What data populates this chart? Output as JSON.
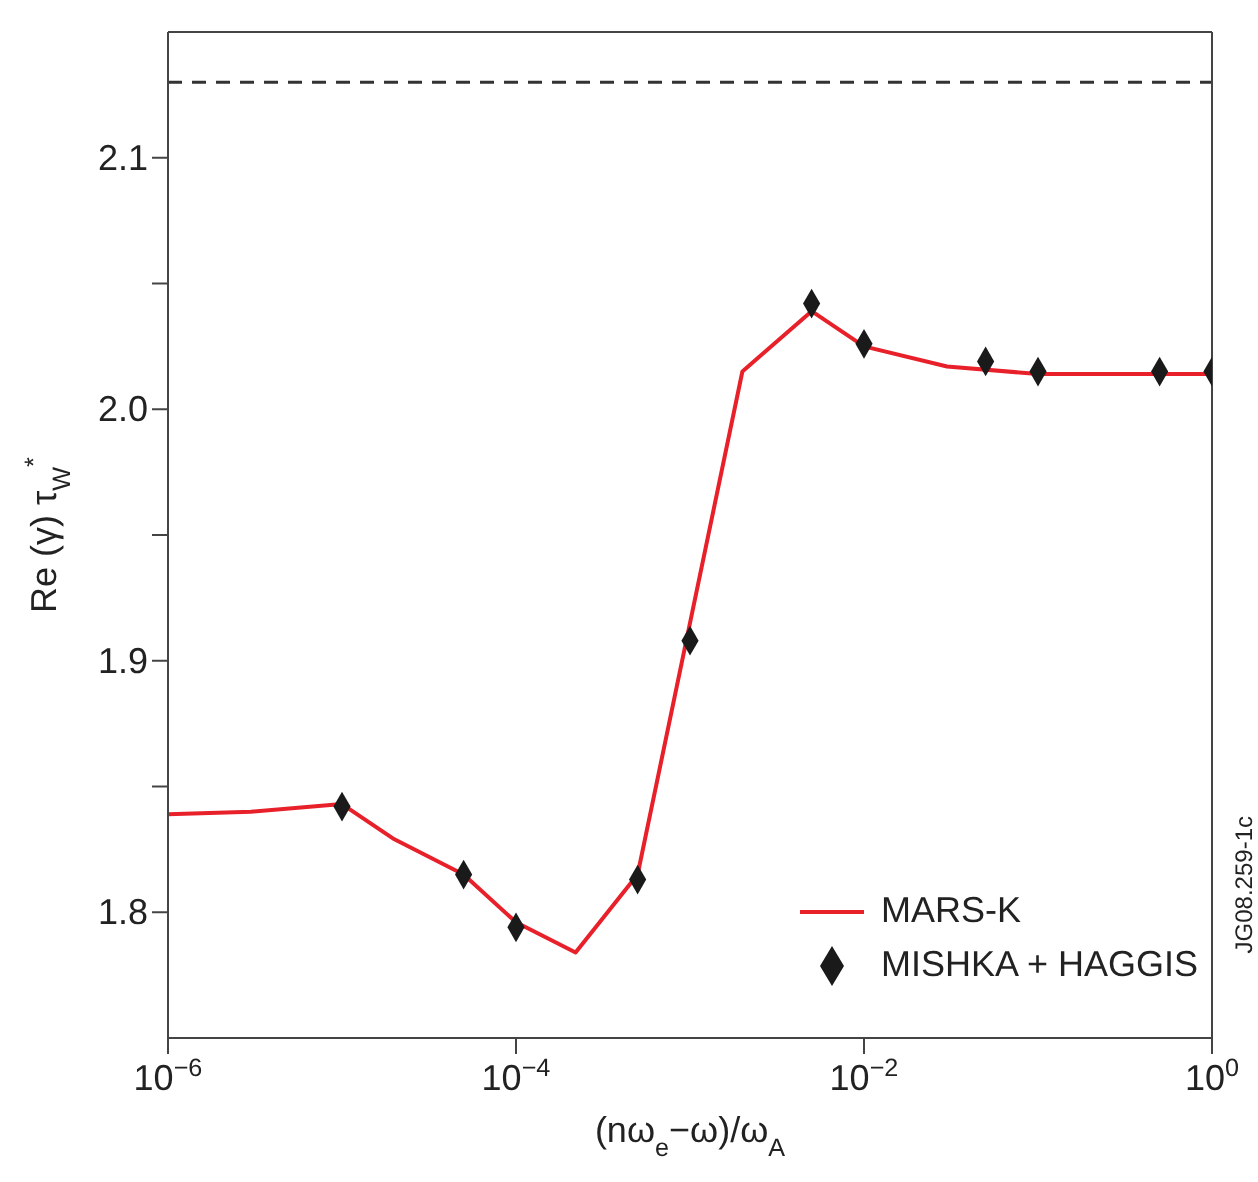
{
  "chart_data": {
    "type": "line",
    "log": "x",
    "xlabel": "(nω$_{e}$−ω)/ω$_{A}$",
    "ylabel": "Re (γ) τ$_{W}$$^{*}$",
    "xlim": [
      1e-06,
      1
    ],
    "xticks": [
      {
        "value": 1e-06,
        "label": "10$^{−6}$"
      },
      {
        "value": 0.0001,
        "label": "10$^{−4}$"
      },
      {
        "value": 0.01,
        "label": "10$^{−2}$"
      },
      {
        "value": 1,
        "label": "10$^{0}$"
      }
    ],
    "ylim": [
      1.75,
      2.15
    ],
    "yticks": [
      {
        "value": 1.8,
        "label": "1.8"
      },
      {
        "value": 1.85,
        "label": null
      },
      {
        "value": 1.9,
        "label": "1.9"
      },
      {
        "value": 1.95,
        "label": null
      },
      {
        "value": 2.0,
        "label": "2.0"
      },
      {
        "value": 2.05,
        "label": null
      },
      {
        "value": 2.1,
        "label": "2.1"
      }
    ],
    "series": [
      {
        "name": "MARS-K",
        "type": "line",
        "color": "#e8202a",
        "marker": "none",
        "line_style": "solid",
        "x": [
          1e-06,
          3e-06,
          1e-05,
          2e-05,
          5e-05,
          0.0001,
          0.00022,
          0.0005,
          0.002,
          0.005,
          0.01,
          0.03,
          0.1,
          1
        ],
        "values": [
          1.839,
          1.84,
          1.843,
          1.829,
          1.815,
          1.796,
          1.784,
          1.815,
          2.015,
          2.039,
          2.025,
          2.017,
          2.014,
          2.014
        ]
      },
      {
        "name": "MISHKA + HAGGIS",
        "type": "scatter",
        "color": "#1a1a1a",
        "marker": "diamond",
        "x": [
          1e-05,
          5e-05,
          0.0001,
          0.0005,
          0.001,
          0.005,
          0.01,
          0.05,
          0.1,
          0.5,
          1
        ],
        "values": [
          1.842,
          1.815,
          1.794,
          1.813,
          1.908,
          2.042,
          2.026,
          2.019,
          2.015,
          2.015,
          2.015
        ]
      }
    ],
    "ref_lines": [
      {
        "axis": "y",
        "value": 2.13,
        "label": null,
        "color": "#333333",
        "line_style": "dashed"
      }
    ],
    "grid": false,
    "legend": "bottom right",
    "annotations": [
      "JG08.259-1c"
    ]
  }
}
